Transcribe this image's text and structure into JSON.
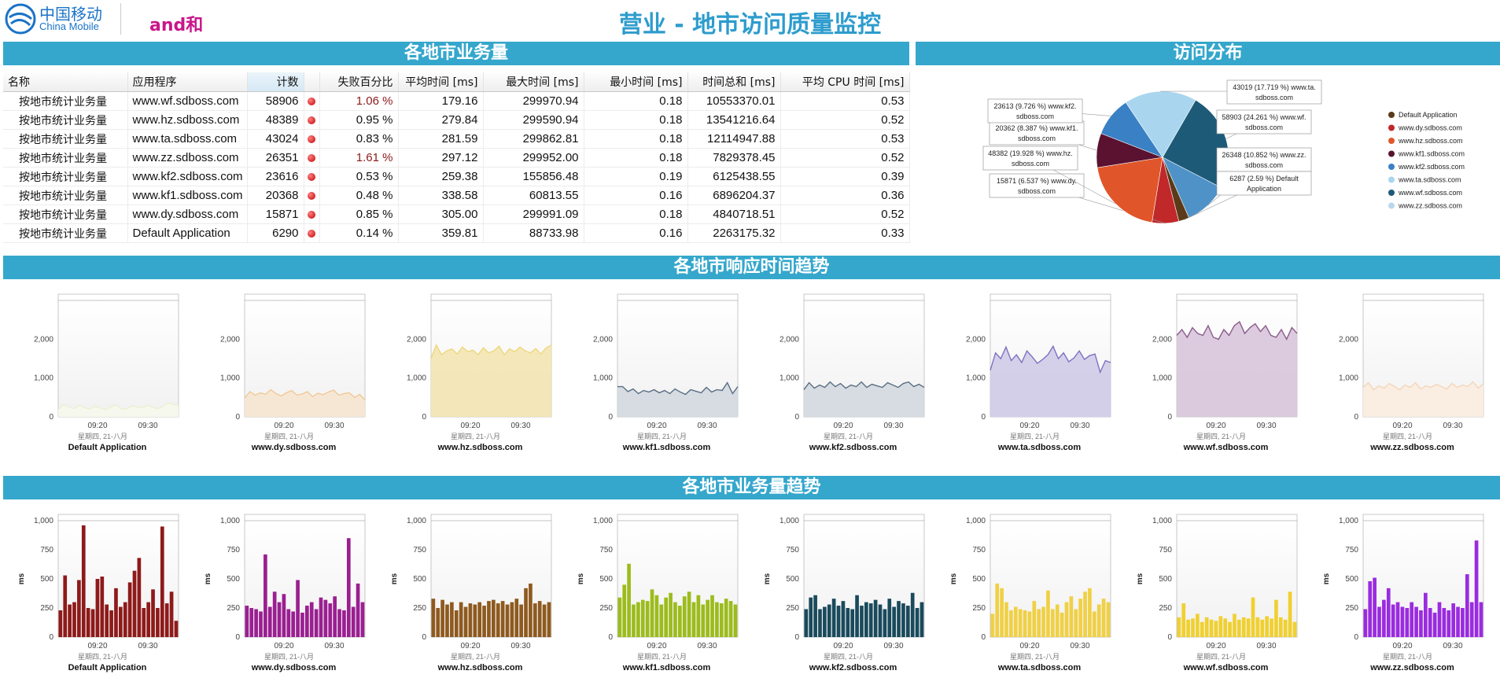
{
  "header": {
    "logo_cn": "中国移动",
    "logo_en": "China Mobile",
    "logo_brand": "and和",
    "title": "营业 - 地市访问质量监控"
  },
  "sections": {
    "volume": "各地市业务量",
    "distribution": "访问分布",
    "response_trend": "各地市响应时间趋势",
    "volume_trend": "各地市业务量趋势"
  },
  "table": {
    "columns": [
      "名称",
      "应用程序",
      "计数",
      "",
      "失败百分比",
      "平均时间 [ms]",
      "最大时间 [ms]",
      "最小时间 [ms]",
      "时间总和 [ms]",
      "平均 CPU 时间 [ms]"
    ],
    "rows": [
      {
        "name": "按地市统计业务量",
        "app": "www.wf.sdboss.com",
        "count": "58906",
        "fail": "1.06 %",
        "avg": "179.16",
        "max": "299970.94",
        "min": "0.18",
        "sum": "10553370.01",
        "cpu": "0.53",
        "fail_high": true
      },
      {
        "name": "按地市统计业务量",
        "app": "www.hz.sdboss.com",
        "count": "48389",
        "fail": "0.95 %",
        "avg": "279.84",
        "max": "299590.94",
        "min": "0.18",
        "sum": "13541216.64",
        "cpu": "0.52",
        "fail_high": false
      },
      {
        "name": "按地市统计业务量",
        "app": "www.ta.sdboss.com",
        "count": "43024",
        "fail": "0.83 %",
        "avg": "281.59",
        "max": "299862.81",
        "min": "0.18",
        "sum": "12114947.88",
        "cpu": "0.53",
        "fail_high": false
      },
      {
        "name": "按地市统计业务量",
        "app": "www.zz.sdboss.com",
        "count": "26351",
        "fail": "1.61 %",
        "avg": "297.12",
        "max": "299952.00",
        "min": "0.18",
        "sum": "7829378.45",
        "cpu": "0.52",
        "fail_high": true
      },
      {
        "name": "按地市统计业务量",
        "app": "www.kf2.sdboss.com",
        "count": "23616",
        "fail": "0.53 %",
        "avg": "259.38",
        "max": "155856.48",
        "min": "0.19",
        "sum": "6125438.55",
        "cpu": "0.39",
        "fail_high": false
      },
      {
        "name": "按地市统计业务量",
        "app": "www.kf1.sdboss.com",
        "count": "20368",
        "fail": "0.48 %",
        "avg": "338.58",
        "max": "60813.55",
        "min": "0.16",
        "sum": "6896204.37",
        "cpu": "0.36",
        "fail_high": false
      },
      {
        "name": "按地市统计业务量",
        "app": "www.dy.sdboss.com",
        "count": "15871",
        "fail": "0.85 %",
        "avg": "305.00",
        "max": "299991.09",
        "min": "0.18",
        "sum": "4840718.51",
        "cpu": "0.52",
        "fail_high": false
      },
      {
        "name": "按地市统计业务量",
        "app": "Default Application",
        "count": "6290",
        "fail": "0.14 %",
        "avg": "359.81",
        "max": "88733.98",
        "min": "0.16",
        "sum": "2263175.32",
        "cpu": "0.33",
        "fail_high": false
      }
    ]
  },
  "pie": {
    "slices": [
      {
        "label": "58903 (24.261 %) www.wf.sdboss.com",
        "value": 58903,
        "color": "#1d5a78"
      },
      {
        "label": "26348 (10.852 %) www.zz.sdboss.com",
        "value": 26348,
        "color": "#4f92c8"
      },
      {
        "label": "6287 (2.59 %) Default Application",
        "value": 6287,
        "color": "#5a3a18"
      },
      {
        "label": "15871 (6.537 %) www.dy.sdboss.com",
        "value": 15871,
        "color": "#c0282a"
      },
      {
        "label": "48382 (19.928 %) www.hz.sdboss.com",
        "value": 48382,
        "color": "#e0562a"
      },
      {
        "label": "20362 (8.387 %) www.kf1.sdboss.com",
        "value": 20362,
        "color": "#5a1230"
      },
      {
        "label": "23613 (9.726 %) www.kf2.sdboss.com",
        "value": 23613,
        "color": "#3a80c4"
      },
      {
        "label": "43019 (17.719 %) www.ta.sdboss.com",
        "value": 43019,
        "color": "#a9d6ee"
      }
    ],
    "legend": [
      {
        "label": "Default Application",
        "color": "#5a3a18"
      },
      {
        "label": "www.dy.sdboss.com",
        "color": "#c0282a"
      },
      {
        "label": "www.hz.sdboss.com",
        "color": "#e0562a"
      },
      {
        "label": "www.kf1.sdboss.com",
        "color": "#5a1230"
      },
      {
        "label": "www.kf2.sdboss.com",
        "color": "#3a80c4"
      },
      {
        "label": "www.ta.sdboss.com",
        "color": "#a9d6ee"
      },
      {
        "label": "www.wf.sdboss.com",
        "color": "#1d5a78"
      },
      {
        "label": "www.zz.sdboss.com",
        "color": "#b8d8ec"
      }
    ]
  },
  "chart_data": [
    {
      "type": "area",
      "title": "各地市响应时间趋势",
      "ylim": [
        0,
        3000
      ],
      "yticks": [
        "0",
        "1,000",
        "2,000"
      ],
      "xticks": [
        "09:20",
        "09:30"
      ],
      "xsub": "星期四, 21-八月",
      "series": [
        {
          "name": "Default Application",
          "color": "#ecefd2",
          "fill": "#f7f8ec",
          "values": [
            180,
            320,
            260,
            210,
            300,
            240,
            200,
            270,
            230,
            190,
            250,
            310,
            220,
            200,
            280,
            260,
            230,
            300,
            250,
            210,
            270,
            360,
            320,
            300
          ]
        },
        {
          "name": "www.dy.sdboss.com",
          "color": "#f0c996",
          "fill": "#f6e6d2",
          "values": [
            480,
            650,
            560,
            620,
            580,
            700,
            600,
            540,
            620,
            680,
            560,
            590,
            650,
            520,
            610,
            570,
            640,
            690,
            560,
            600,
            620,
            500,
            580,
            430
          ]
        },
        {
          "name": "www.hz.sdboss.com",
          "color": "#efd77a",
          "fill": "#f3e6b2",
          "values": [
            1500,
            1850,
            1600,
            1700,
            1750,
            1620,
            1800,
            1680,
            1720,
            1600,
            1780,
            1650,
            1700,
            1820,
            1600,
            1750,
            1680,
            1800,
            1700,
            1650,
            1760,
            1620,
            1780,
            1850
          ]
        },
        {
          "name": "www.kf1.sdboss.com",
          "color": "#5a6e84",
          "fill": "#d3d9e0",
          "values": [
            780,
            780,
            650,
            720,
            600,
            680,
            640,
            700,
            620,
            680,
            600,
            720,
            640,
            580,
            700,
            660,
            620,
            760,
            640,
            700,
            680,
            880,
            600,
            780
          ]
        },
        {
          "name": "www.kf2.sdboss.com",
          "color": "#5a6e84",
          "fill": "#d3d9e0",
          "values": [
            700,
            880,
            740,
            820,
            760,
            900,
            780,
            860,
            740,
            820,
            780,
            900,
            760,
            840,
            800,
            760,
            880,
            820,
            760,
            860,
            900,
            780,
            840,
            760
          ]
        },
        {
          "name": "www.ta.sdboss.com",
          "color": "#7d72c0",
          "fill": "#cfcbe8",
          "values": [
            1200,
            1650,
            1500,
            1800,
            1450,
            1600,
            1400,
            1700,
            1550,
            1380,
            1480,
            1600,
            1820,
            1500,
            1650,
            1420,
            1520,
            1700,
            1480,
            1580,
            1620,
            1150,
            1450,
            1400
          ]
        },
        {
          "name": "www.wf.sdboss.com",
          "color": "#8a5a8c",
          "fill": "#d8c5da",
          "values": [
            2100,
            2250,
            2050,
            2300,
            2150,
            2100,
            2350,
            2050,
            2000,
            2250,
            2100,
            2350,
            2450,
            2150,
            2300,
            2400,
            2200,
            2350,
            2100,
            2050,
            2250,
            2000,
            2300,
            2150
          ]
        },
        {
          "name": "www.zz.sdboss.com",
          "color": "#f5d6b8",
          "fill": "#fbece0",
          "values": [
            760,
            880,
            700,
            800,
            740,
            860,
            780,
            700,
            820,
            760,
            880,
            720,
            800,
            760,
            840,
            780,
            720,
            860,
            760,
            820,
            780,
            900,
            740,
            860
          ]
        }
      ]
    },
    {
      "type": "bar",
      "title": "各地市业务量趋势",
      "ylabel": "ms",
      "ylim": [
        0,
        1000
      ],
      "yticks": [
        "0",
        "250",
        "500",
        "750",
        "1,000"
      ],
      "xticks": [
        "09:20",
        "09:30"
      ],
      "xsub": "星期四, 21-八月",
      "series": [
        {
          "name": "Default Application",
          "color": "#8e1a1a",
          "values": [
            230,
            530,
            280,
            300,
            490,
            960,
            250,
            240,
            500,
            520,
            280,
            230,
            420,
            260,
            300,
            470,
            570,
            680,
            250,
            300,
            410,
            250,
            950,
            290,
            390,
            140
          ]
        },
        {
          "name": "www.dy.sdboss.com",
          "color": "#9a1f91",
          "values": [
            270,
            250,
            240,
            220,
            710,
            260,
            390,
            300,
            370,
            240,
            220,
            490,
            210,
            270,
            300,
            240,
            340,
            320,
            290,
            350,
            240,
            230,
            850,
            260,
            460,
            300
          ]
        },
        {
          "name": "www.hz.sdboss.com",
          "color": "#8e5a1f",
          "values": [
            330,
            250,
            320,
            280,
            300,
            230,
            300,
            260,
            290,
            280,
            300,
            270,
            310,
            320,
            290,
            310,
            280,
            300,
            330,
            280,
            420,
            460,
            290,
            310,
            280,
            300
          ]
        },
        {
          "name": "www.kf1.sdboss.com",
          "color": "#9cbc1c",
          "values": [
            340,
            450,
            630,
            280,
            300,
            320,
            310,
            410,
            360,
            280,
            340,
            380,
            300,
            270,
            350,
            390,
            300,
            360,
            280,
            320,
            360,
            300,
            290,
            330,
            310,
            280
          ]
        },
        {
          "name": "www.kf2.sdboss.com",
          "color": "#1a4a5c",
          "values": [
            240,
            340,
            360,
            240,
            260,
            280,
            330,
            270,
            310,
            250,
            240,
            360,
            270,
            300,
            290,
            320,
            280,
            240,
            330,
            260,
            310,
            290,
            270,
            380,
            250,
            300
          ]
        },
        {
          "name": "www.ta.sdboss.com",
          "color": "#f0d045",
          "values": [
            200,
            460,
            420,
            300,
            230,
            260,
            240,
            230,
            220,
            310,
            240,
            260,
            400,
            240,
            280,
            210,
            300,
            350,
            240,
            330,
            390,
            420,
            220,
            280,
            330,
            300
          ]
        },
        {
          "name": "www.wf.sdboss.com",
          "color": "#f0d030",
          "values": [
            170,
            290,
            150,
            160,
            200,
            130,
            170,
            150,
            140,
            180,
            160,
            130,
            200,
            150,
            170,
            160,
            340,
            170,
            150,
            180,
            160,
            320,
            170,
            150,
            390,
            130
          ]
        },
        {
          "name": "www.zz.sdboss.com",
          "color": "#9a2be0",
          "values": [
            240,
            480,
            510,
            260,
            320,
            420,
            280,
            300,
            260,
            250,
            300,
            260,
            230,
            380,
            250,
            210,
            300,
            250,
            230,
            290,
            260,
            250,
            540,
            300,
            830,
            300
          ]
        }
      ]
    }
  ]
}
